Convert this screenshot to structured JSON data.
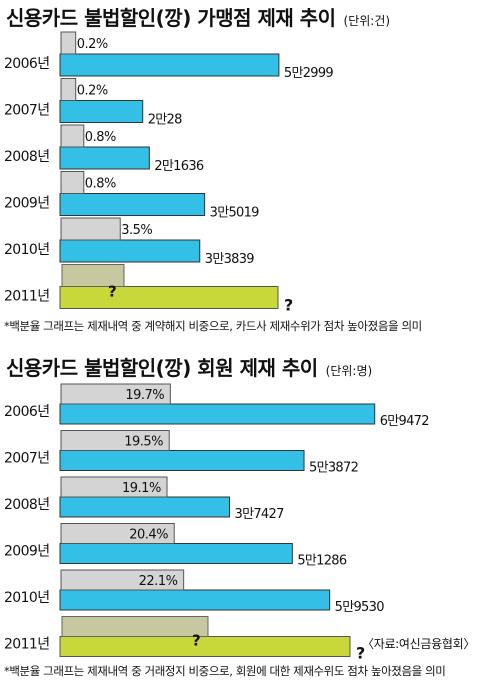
{
  "chart_data": [
    {
      "type": "bar",
      "title": "신용카드 불법할인(깡) 가맹점 제재 추이",
      "unit": "(단위:건)",
      "categories": [
        "2006년",
        "2007년",
        "2008년",
        "2009년",
        "2010년",
        "2011년"
      ],
      "series": [
        {
          "values": [
            52999,
            20028,
            21636,
            35019,
            33839,
            null
          ],
          "labels": [
            "5만2999",
            "2만28",
            "2만1636",
            "3만5019",
            "3만3839",
            "?"
          ]
        },
        {
          "values": [
            0.2,
            0.2,
            0.8,
            0.8,
            3.5,
            null
          ],
          "labels": [
            "0.2%",
            "0.2%",
            "0.8%",
            "0.8%",
            "3.5%",
            "?"
          ]
        }
      ],
      "colors": {
        "count": "#33bfe6",
        "percent": "#d4d4d4",
        "unknown": "#c8d83a"
      },
      "footnote": "*백분율 그래프는 제재내역 중 계약해지 비중으로, 카드사 제재수위가 점차 높아졌음을 의미"
    },
    {
      "type": "bar",
      "title": "신용카드 불법할인(깡) 회원 제재 추이",
      "unit": "(단위:명)",
      "categories": [
        "2006년",
        "2007년",
        "2008년",
        "2009년",
        "2010년",
        "2011년"
      ],
      "series": [
        {
          "values": [
            69472,
            53872,
            37427,
            51286,
            59530,
            null
          ],
          "labels": [
            "6만9472",
            "5만3872",
            "3만7427",
            "5만1286",
            "5만9530",
            "?"
          ]
        },
        {
          "values": [
            19.7,
            19.5,
            19.1,
            20.4,
            22.1,
            null
          ],
          "labels": [
            "19.7%",
            "19.5%",
            "19.1%",
            "20.4%",
            "22.1%",
            "?"
          ]
        }
      ],
      "colors": {
        "count": "#33bfe6",
        "percent": "#d4d4d4",
        "unknown": "#c8d83a"
      },
      "footnote": "*백분율 그래프는 제재내역 중 거래정지 비중으로, 회원에 대한 제재수위도 점차 높아졌음을 의미",
      "source": "〈자료:여신금융협회〉"
    }
  ]
}
